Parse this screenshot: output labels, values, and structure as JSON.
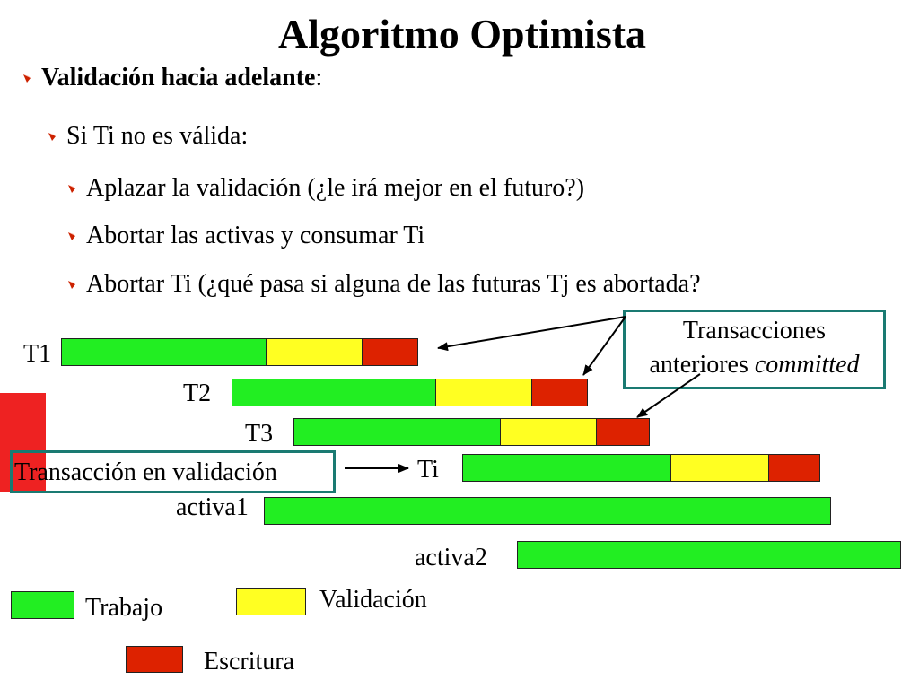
{
  "title": "Algoritmo Optimista",
  "bullets": {
    "level1": "Validación hacia adelante",
    "level1_colon": ":",
    "level2": "Si Ti no es válida:",
    "level3": [
      "Aplazar la validación (¿le irá mejor en el futuro?)",
      "Abortar las activas y consumar Ti",
      "Abortar Ti (¿qué pasa si alguna de las futuras Tj es abortada?"
    ]
  },
  "transactions": [
    {
      "label": "T1"
    },
    {
      "label": "T2"
    },
    {
      "label": "T3"
    },
    {
      "label": "Ti"
    },
    {
      "label": "activa1"
    },
    {
      "label": "activa2"
    }
  ],
  "callouts": {
    "committed_line1": "Transacciones",
    "committed_line2": "anteriores",
    "committed_italic": "committed",
    "validating": "Transacción en validación"
  },
  "legend": {
    "work": "Trabajo",
    "validation": "Validación",
    "write": "Escritura"
  },
  "colors": {
    "work": "#22ee22",
    "validation": "#ffff22",
    "write": "#dd2200",
    "box_border": "#1a7a72",
    "bullet": "#cc2200",
    "side_bar": "#ee2222"
  }
}
